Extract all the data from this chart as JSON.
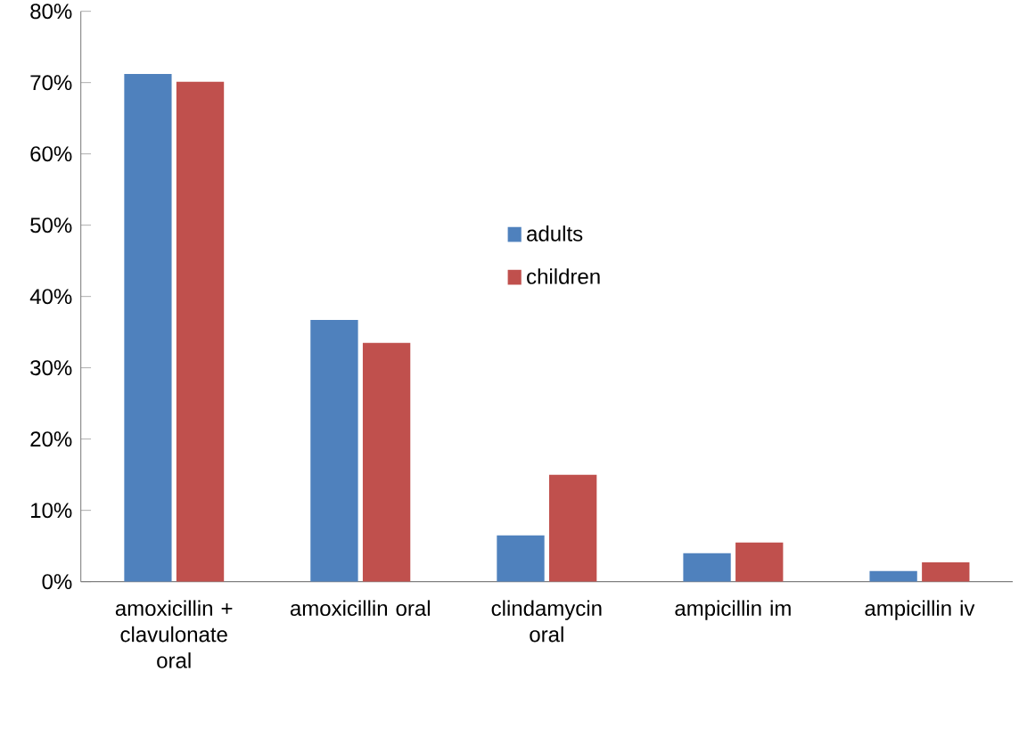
{
  "chart_data": {
    "type": "bar",
    "categories": [
      "amoxicillin + clavulonate oral",
      "amoxicillin oral",
      "clindamycin oral",
      "ampicillin im",
      "ampicillin iv"
    ],
    "series": [
      {
        "name": "adults",
        "color": "#4f81bd",
        "values": [
          71.2,
          36.7,
          6.5,
          4.0,
          1.5
        ]
      },
      {
        "name": "children",
        "color": "#c0504d",
        "values": [
          70.1,
          33.5,
          15.0,
          5.5,
          2.7
        ]
      }
    ],
    "ylim": [
      0,
      80
    ],
    "yticks": [
      {
        "value": 0,
        "label": "0%"
      },
      {
        "value": 10,
        "label": "10%"
      },
      {
        "value": 20,
        "label": "20%"
      },
      {
        "value": 30,
        "label": "30%"
      },
      {
        "value": 40,
        "label": "40%"
      },
      {
        "value": 50,
        "label": "50%"
      },
      {
        "value": 60,
        "label": "60%"
      },
      {
        "value": 70,
        "label": "70%"
      },
      {
        "value": 80,
        "label": "80%"
      }
    ],
    "grid": false,
    "legend": "center"
  }
}
